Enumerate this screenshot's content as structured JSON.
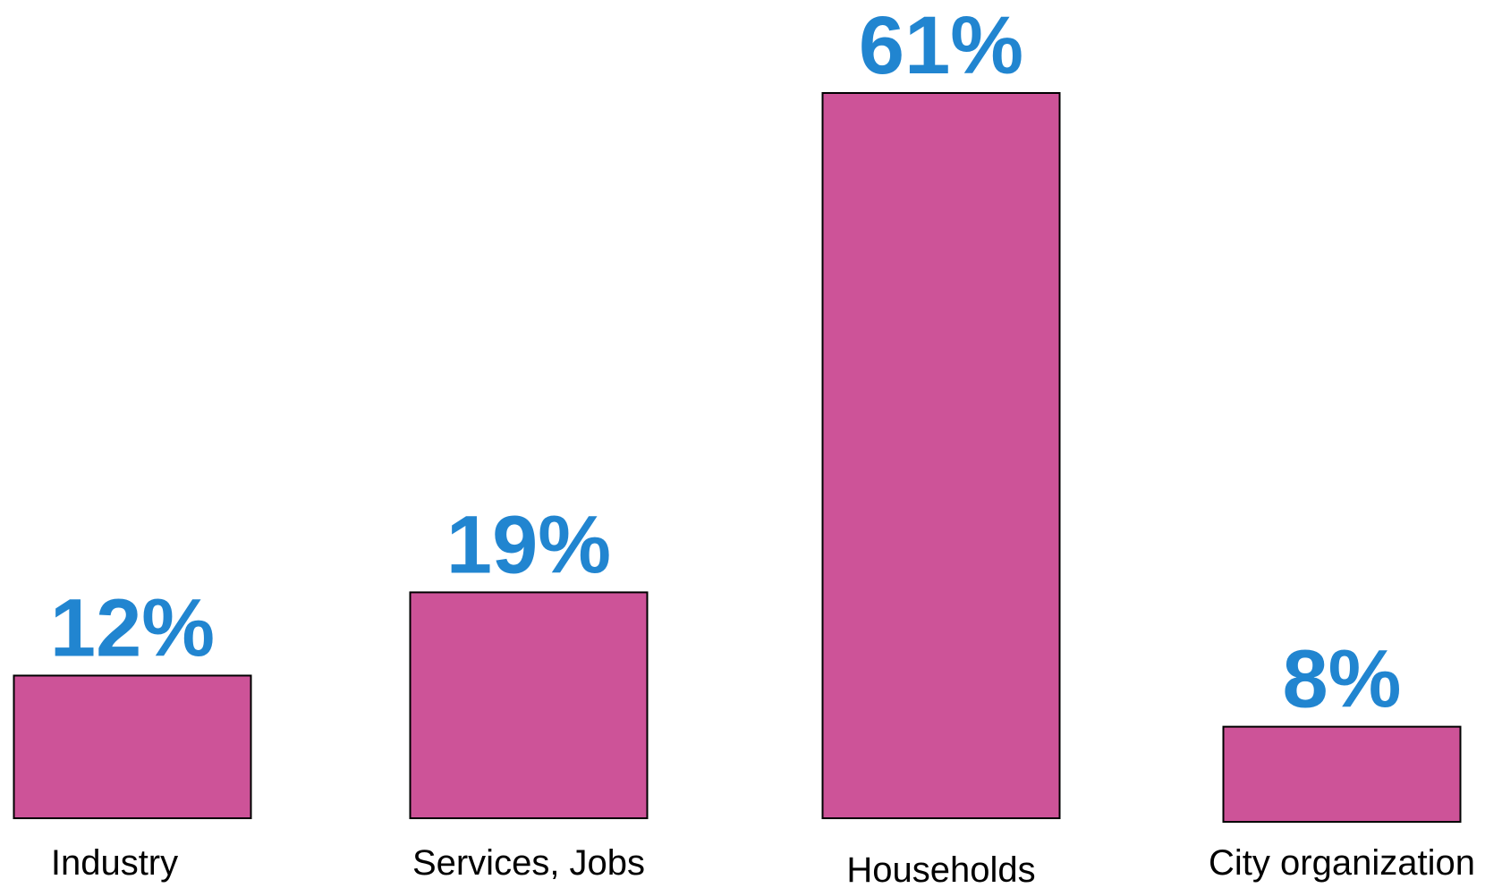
{
  "chart_data": {
    "type": "bar",
    "categories": [
      "Industry",
      "Services, Jobs",
      "Households",
      "City organization"
    ],
    "values": [
      12,
      19,
      61,
      8
    ],
    "data_labels": [
      "12%",
      "19%",
      "61%",
      "8%"
    ],
    "title": "",
    "xlabel": "",
    "ylabel": "",
    "ylim": [
      0,
      61
    ],
    "grid": false,
    "legend": "none"
  },
  "colors": {
    "bar_fill": "#CD5398",
    "bar_stroke": "#000000",
    "value_label": "#2185D0",
    "category_label": "#000000"
  }
}
